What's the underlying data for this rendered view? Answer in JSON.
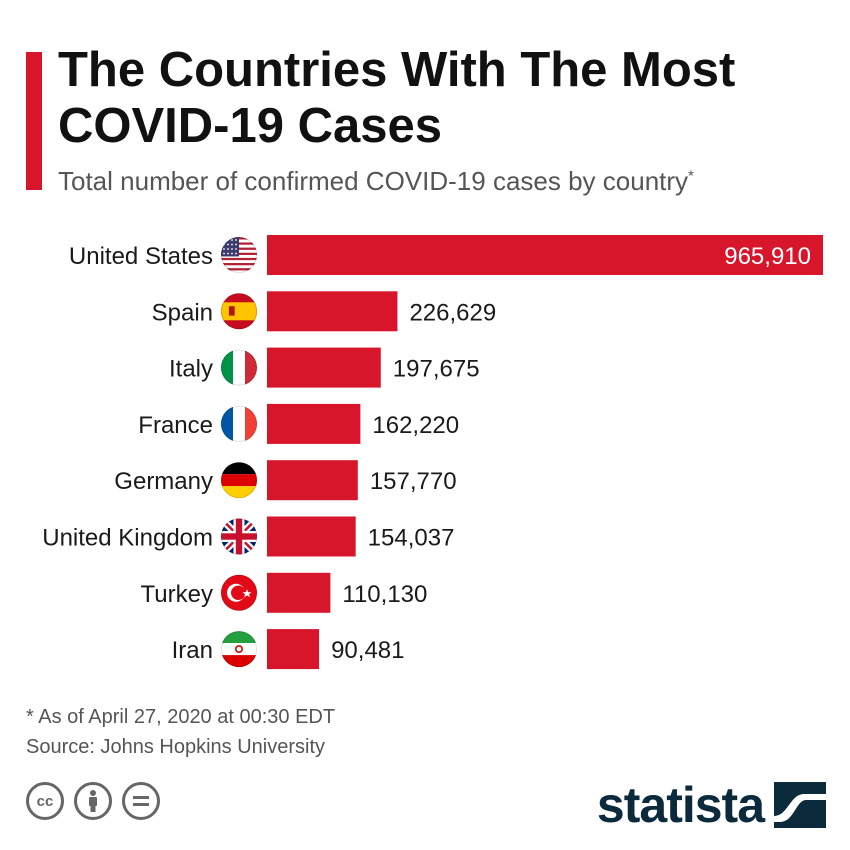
{
  "header": {
    "title": "The Countries With The Most COVID-19 Cases",
    "subtitle": "Total number of confirmed COVID-19 cases by country",
    "subtitle_marker": "*"
  },
  "chart_data": {
    "type": "bar",
    "orientation": "horizontal",
    "title": "The Countries With The Most COVID-19 Cases",
    "subtitle": "Total number of confirmed COVID-19 cases by country",
    "categories": [
      "United States",
      "Spain",
      "Italy",
      "France",
      "Germany",
      "United Kingdom",
      "Turkey",
      "Iran"
    ],
    "values": [
      965910,
      226629,
      197675,
      162220,
      157770,
      154037,
      110130,
      90481
    ],
    "labels": [
      "965,910",
      "226,629",
      "197,675",
      "162,220",
      "157,770",
      "154,037",
      "110,130",
      "90,481"
    ],
    "flags": [
      "us",
      "es",
      "it",
      "fr",
      "de",
      "gb",
      "tr",
      "ir"
    ],
    "xlim": [
      0,
      965910
    ],
    "bar_color": "#d8162b",
    "grid": false
  },
  "footer": {
    "note": "* As of April 27, 2020 at 00:30 EDT",
    "source": "Source: Johns Hopkins University",
    "brand": "statista",
    "license_icons": [
      "cc-icon",
      "by-icon",
      "nd-icon"
    ]
  },
  "colors": {
    "accent": "#d8162b",
    "brand": "#0b2a3c"
  }
}
